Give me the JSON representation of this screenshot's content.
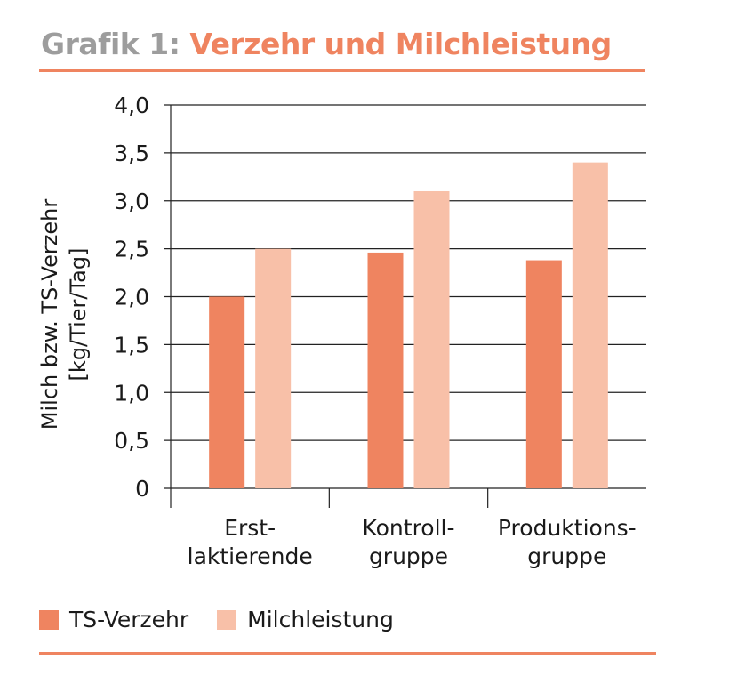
{
  "title": {
    "prefix": "Grafik 1:",
    "main": "Verzehr und Milchleistung"
  },
  "colors": {
    "ts": "#ef8460",
    "milk": "#f8c0a8",
    "accent": "#ef8460",
    "grid": "#222222"
  },
  "legend": {
    "ts_label": "TS-Verzehr",
    "milk_label": "Milchleistung"
  },
  "chart_data": {
    "type": "bar",
    "title": "Verzehr und Milchleistung",
    "ylabel_line1": "Milch bzw. TS-Verzehr",
    "ylabel_line2": "[kg/Tier/Tag]",
    "xlabel": "",
    "ylim": [
      0,
      4.0
    ],
    "yticks": [
      "0",
      "0,5",
      "1,0",
      "1,5",
      "2,0",
      "2,5",
      "3,0",
      "3,5",
      "4,0"
    ],
    "ytick_values": [
      0,
      0.5,
      1.0,
      1.5,
      2.0,
      2.5,
      3.0,
      3.5,
      4.0
    ],
    "categories": [
      [
        "Erst-",
        "laktierende"
      ],
      [
        "Kontroll-",
        "gruppe"
      ],
      [
        "Produktions-",
        "gruppe"
      ]
    ],
    "series": [
      {
        "name": "TS-Verzehr",
        "values": [
          2.0,
          2.46,
          2.38
        ]
      },
      {
        "name": "Milchleistung",
        "values": [
          2.5,
          3.1,
          3.4
        ]
      }
    ],
    "grid": true,
    "legend_position": "bottom-left"
  }
}
